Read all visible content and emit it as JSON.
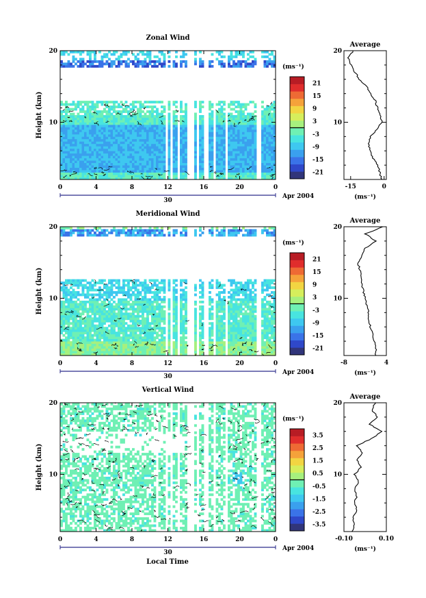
{
  "figure": {
    "x_label": "Local Time",
    "date_label": "Apr 2004",
    "day_label": "30"
  },
  "chart_data": [
    {
      "type": "heatmap",
      "title": "Zonal Wind",
      "ylabel": "Height (km)",
      "ylim": [
        2,
        20
      ],
      "yticks": [
        10,
        20
      ],
      "xlim": [
        0,
        24
      ],
      "xticks": [
        "0",
        "4",
        "8",
        "12",
        "16",
        "20",
        "0"
      ],
      "colorbar": {
        "unit": "(ms⁻¹)",
        "range": [
          -24,
          24
        ],
        "tick_labels": [
          "21",
          "15",
          "9",
          "3",
          "-3",
          "-9",
          "-15",
          "-21"
        ],
        "tick_values": [
          21,
          15,
          9,
          3,
          -3,
          -9,
          -15,
          -21
        ],
        "contour_level": 0
      },
      "profile": {
        "title": "Average",
        "xlabel": "(ms⁻¹)",
        "xlim": [
          -18,
          1
        ],
        "xticks": [
          "-15",
          "0"
        ],
        "xtick_values": [
          -15,
          0
        ],
        "yticks": [
          10,
          20
        ],
        "y": [
          2,
          3,
          4,
          5,
          6,
          7,
          8,
          9,
          10,
          11,
          12,
          13,
          14,
          15,
          16,
          17,
          18,
          19,
          20
        ],
        "values": [
          -1,
          -2,
          -3,
          -5,
          -6,
          -7,
          -6,
          -3,
          -1,
          -2,
          -3,
          -4,
          -6,
          -8,
          -11,
          -13,
          -15,
          -16,
          -14
        ]
      },
      "gaps_hours": [
        [
          11.7,
          12.0
        ],
        [
          12.3,
          12.6
        ],
        [
          13.1,
          13.4
        ],
        [
          14.1,
          15.0
        ],
        [
          15.2,
          15.4
        ],
        [
          16.0,
          16.6
        ],
        [
          17.0,
          17.2
        ],
        [
          18.3,
          18.6
        ],
        [
          22.0,
          22.4
        ]
      ]
    },
    {
      "type": "heatmap",
      "title": "Meridional Wind",
      "ylabel": "Height (km)",
      "ylim": [
        2,
        20
      ],
      "yticks": [
        10,
        20
      ],
      "xlim": [
        0,
        24
      ],
      "xticks": [
        "0",
        "4",
        "8",
        "12",
        "16",
        "20",
        "0"
      ],
      "colorbar": {
        "unit": "(ms⁻¹)",
        "range": [
          -24,
          24
        ],
        "tick_labels": [
          "21",
          "15",
          "9",
          "3",
          "-3",
          "-9",
          "-15",
          "-21"
        ],
        "tick_values": [
          21,
          15,
          9,
          3,
          -3,
          -9,
          -15,
          -21
        ],
        "contour_level": 0
      },
      "profile": {
        "title": "Average",
        "xlabel": "(ms⁻¹)",
        "xlim": [
          -8,
          4
        ],
        "xticks": [
          "-8",
          "4"
        ],
        "xtick_values": [
          -8,
          4
        ],
        "yticks": [
          10,
          20
        ],
        "y": [
          2,
          3,
          4,
          5,
          6,
          7,
          8,
          9,
          10,
          11,
          12,
          13,
          14,
          15,
          16,
          17,
          18,
          19,
          20
        ],
        "values": [
          1,
          1,
          0.5,
          0,
          -0.5,
          -1,
          -1,
          -1.5,
          -2,
          -2.5,
          -3,
          -3,
          -3.5,
          -4,
          -3,
          -2,
          1,
          -2,
          3
        ]
      },
      "gaps_hours": [
        [
          11.7,
          12.0
        ],
        [
          12.3,
          12.6
        ],
        [
          13.1,
          13.4
        ],
        [
          14.1,
          15.0
        ],
        [
          15.2,
          15.4
        ],
        [
          16.0,
          16.6
        ],
        [
          17.0,
          17.2
        ],
        [
          18.3,
          18.6
        ],
        [
          22.0,
          22.4
        ]
      ]
    },
    {
      "type": "heatmap",
      "title": "Vertical Wind",
      "ylabel": "Height (km)",
      "ylim": [
        2,
        20
      ],
      "yticks": [
        10,
        20
      ],
      "xlim": [
        0,
        24
      ],
      "xticks": [
        "0",
        "4",
        "8",
        "12",
        "16",
        "20",
        "0"
      ],
      "colorbar": {
        "unit": "(ms⁻¹)",
        "range": [
          -4,
          4
        ],
        "tick_labels": [
          "3.5",
          "2.5",
          "1.5",
          "0.5",
          "-0.5",
          "-1.5",
          "-2.5",
          "-3.5"
        ],
        "tick_values": [
          3.5,
          2.5,
          1.5,
          0.5,
          -0.5,
          -1.5,
          -2.5,
          -3.5
        ],
        "contour_level": 0
      },
      "profile": {
        "title": "Average",
        "xlabel": "(ms⁻¹)",
        "xlim": [
          -0.1,
          0.1
        ],
        "xticks": [
          "-0.10",
          "0.10"
        ],
        "xtick_values": [
          -0.1,
          0.1
        ],
        "yticks": [
          10,
          20
        ],
        "y": [
          2,
          3,
          4,
          5,
          6,
          7,
          8,
          9,
          10,
          11,
          12,
          13,
          14,
          15,
          16,
          17,
          18,
          19,
          20
        ],
        "values": [
          -0.06,
          -0.05,
          -0.06,
          -0.04,
          -0.05,
          -0.04,
          -0.05,
          -0.03,
          -0.05,
          -0.02,
          -0.04,
          -0.01,
          -0.04,
          0.03,
          0.08,
          0.02,
          0.06,
          0.03,
          0.05
        ]
      },
      "gaps_hours": [
        [
          10.8,
          11.0
        ],
        [
          11.7,
          12.0
        ],
        [
          12.3,
          12.6
        ],
        [
          13.1,
          13.4
        ],
        [
          14.1,
          15.0
        ],
        [
          15.2,
          15.4
        ],
        [
          16.0,
          16.6
        ],
        [
          17.0,
          17.2
        ],
        [
          18.3,
          18.6
        ],
        [
          22.0,
          22.4
        ]
      ]
    }
  ],
  "colors": {
    "scale": [
      "#31357a",
      "#2f48c9",
      "#3a73e8",
      "#3aa0ee",
      "#3ec8f0",
      "#48e4e0",
      "#6ff0b4",
      "#a6f07e",
      "#d6ee5c",
      "#f2d542",
      "#f5a23a",
      "#ee6a34",
      "#e02d2c",
      "#b81c24"
    ]
  }
}
